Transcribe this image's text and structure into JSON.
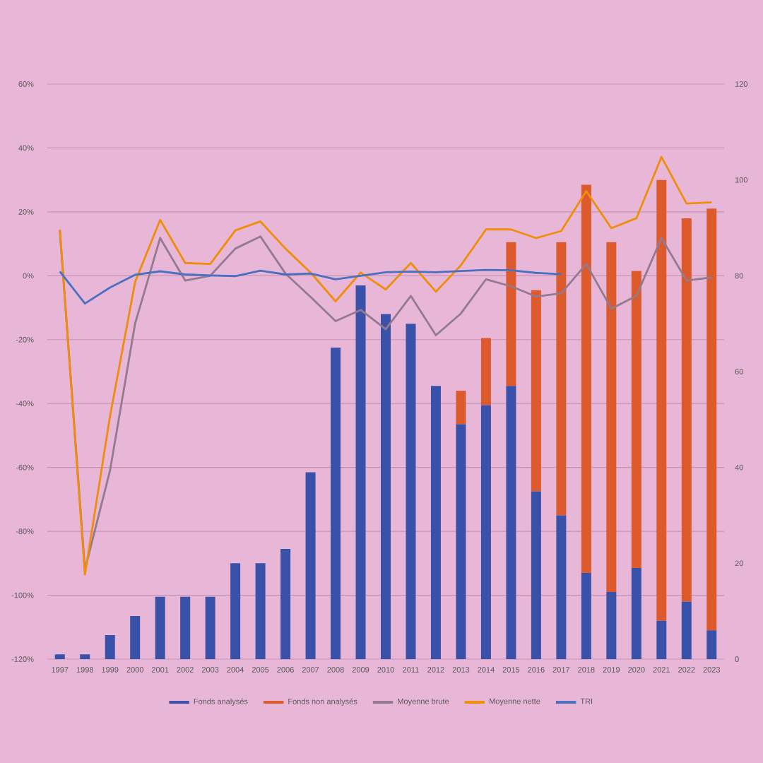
{
  "chart_data": {
    "type": "bar",
    "categories": [
      "1997",
      "1998",
      "1999",
      "2000",
      "2001",
      "2002",
      "2003",
      "2004",
      "2005",
      "2006",
      "2007",
      "2008",
      "2009",
      "2010",
      "2011",
      "2012",
      "2013",
      "2014",
      "2015",
      "2016",
      "2017",
      "2018",
      "2019",
      "2020",
      "2021",
      "2022",
      "2023"
    ],
    "series": [
      {
        "name": "Fonds analysés",
        "axis": "y2",
        "color": "#3a51a9",
        "values": [
          1,
          1,
          5,
          9,
          13,
          13,
          13,
          20,
          20,
          23,
          39,
          65,
          78,
          72,
          70,
          57,
          49,
          53,
          57,
          35,
          30,
          18,
          14,
          19,
          8,
          12,
          6
        ]
      },
      {
        "name": "Fonds non analysés",
        "axis": "y2",
        "color": "#dc5a2c",
        "values": [
          0,
          0,
          0,
          0,
          0,
          0,
          0,
          0,
          0,
          0,
          0,
          0,
          0,
          0,
          0,
          0,
          7,
          14,
          30,
          42,
          57,
          81,
          73,
          62,
          92,
          80,
          88
        ]
      },
      {
        "name": "Moyenne brute",
        "type": "line",
        "color": "#937a8e",
        "values": [
          14,
          -92,
          -61,
          -15,
          11.8,
          -1.5,
          0,
          8.5,
          12.3,
          0.7,
          -6.6,
          -14.2,
          -10.7,
          -16.7,
          -6.3,
          -18.6,
          -11.8,
          -1.1,
          -3.3,
          -6.5,
          -5.5,
          3.7,
          -10.3,
          -6.3,
          11.8,
          -1.5,
          -0.5
        ]
      },
      {
        "name": "Moyenne nette",
        "type": "line",
        "color": "#ee8e0a",
        "values": [
          14.4,
          -93.5,
          -44,
          -2,
          17.5,
          4,
          3.7,
          14.2,
          17,
          8.5,
          1,
          -8,
          1,
          -4.3,
          4,
          -5,
          3.3,
          14.5,
          14.5,
          11.8,
          14,
          26.5,
          14.9,
          18,
          37.2,
          22.6,
          23
        ]
      },
      {
        "name": "TRI",
        "type": "line",
        "color": "#4a70c0",
        "values": [
          1.3,
          -8.7,
          -3.7,
          0.3,
          1.4,
          0.4,
          0.1,
          -0.1,
          1.6,
          0.4,
          0.7,
          -1.1,
          0,
          1.1,
          1.3,
          1.1,
          1.5,
          1.8,
          1.7,
          0.9,
          0.5,
          null,
          null,
          null,
          null,
          null,
          null
        ]
      }
    ],
    "stacked": true,
    "ylim": [
      -120,
      60
    ],
    "yticks": [
      {
        "value": -120,
        "label": "-120%"
      },
      {
        "value": -100,
        "label": "-100%"
      },
      {
        "value": -80,
        "label": "-80%"
      },
      {
        "value": -60,
        "label": "-60%"
      },
      {
        "value": -40,
        "label": "-40%"
      },
      {
        "value": -20,
        "label": "-20%"
      },
      {
        "value": 0,
        "label": "0%"
      },
      {
        "value": 20,
        "label": "20%"
      },
      {
        "value": 40,
        "label": "40%"
      },
      {
        "value": 60,
        "label": "60%"
      }
    ],
    "y2lim": [
      0,
      120
    ],
    "y2ticks": [
      0,
      20,
      40,
      60,
      80,
      100,
      120
    ],
    "grid": "y",
    "legend": "bottom",
    "marker": "none"
  }
}
